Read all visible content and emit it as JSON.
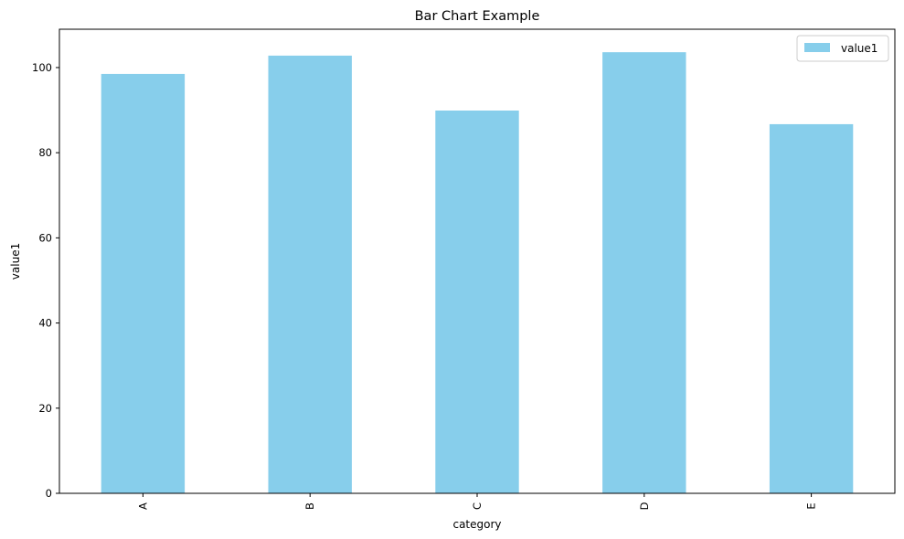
{
  "chart_data": {
    "type": "bar",
    "title": "Bar Chart Example",
    "xlabel": "category",
    "ylabel": "value1",
    "categories": [
      "A",
      "B",
      "C",
      "D",
      "E"
    ],
    "series": [
      {
        "name": "value1",
        "values": [
          98.5,
          102.8,
          89.9,
          103.6,
          86.7
        ],
        "color": "#87CEEB"
      }
    ],
    "ylim": [
      0,
      109
    ],
    "yticks": [
      0,
      20,
      40,
      60,
      80,
      100
    ],
    "ytick_labels": [
      "0",
      "20",
      "40",
      "60",
      "80",
      "100"
    ],
    "grid": false,
    "legend_position": "top-right",
    "tick_label_rotation_x": "vertical"
  }
}
